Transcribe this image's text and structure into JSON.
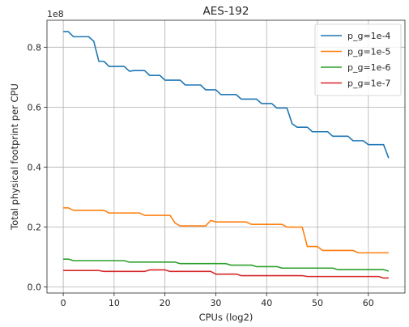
{
  "chart_data": {
    "type": "line",
    "title": "AES-192",
    "xlabel": "CPUs (log2)",
    "ylabel": "Total physical footprint per CPU",
    "y_offset_label": "1e8",
    "xlim": [
      -3.2,
      67.2
    ],
    "ylim": [
      -0.02,
      0.89
    ],
    "x_ticks": [
      0,
      10,
      20,
      30,
      40,
      50,
      60
    ],
    "y_ticks": [
      0.0,
      0.2,
      0.4,
      0.6,
      0.8
    ],
    "y_tick_labels": [
      "0.0",
      "0.2",
      "0.4",
      "0.6",
      "0.8"
    ],
    "grid": true,
    "legend": "top-right",
    "series": [
      {
        "name": "p_g=1e-4",
        "color": "#1f77b4",
        "x": [
          0,
          1,
          2,
          3,
          4,
          5,
          6,
          7,
          8,
          9,
          10,
          11,
          12,
          13,
          14,
          15,
          16,
          17,
          18,
          19,
          20,
          21,
          22,
          23,
          24,
          25,
          26,
          27,
          28,
          29,
          30,
          31,
          32,
          33,
          34,
          35,
          36,
          37,
          38,
          39,
          40,
          41,
          42,
          43,
          44,
          45,
          46,
          47,
          48,
          49,
          50,
          51,
          52,
          53,
          54,
          55,
          56,
          57,
          58,
          59,
          60,
          61,
          62,
          63,
          64
        ],
        "y": [
          0.852,
          0.852,
          0.835,
          0.835,
          0.835,
          0.835,
          0.82,
          0.753,
          0.753,
          0.736,
          0.736,
          0.736,
          0.736,
          0.72,
          0.722,
          0.722,
          0.722,
          0.706,
          0.706,
          0.706,
          0.69,
          0.69,
          0.69,
          0.69,
          0.674,
          0.674,
          0.674,
          0.674,
          0.658,
          0.658,
          0.658,
          0.642,
          0.642,
          0.642,
          0.642,
          0.627,
          0.627,
          0.627,
          0.627,
          0.612,
          0.612,
          0.612,
          0.597,
          0.597,
          0.597,
          0.545,
          0.533,
          0.533,
          0.533,
          0.518,
          0.518,
          0.518,
          0.518,
          0.503,
          0.503,
          0.503,
          0.503,
          0.488,
          0.488,
          0.488,
          0.475,
          0.475,
          0.475,
          0.475,
          0.43
        ]
      },
      {
        "name": "p_g=1e-5",
        "color": "#ff7f0e",
        "x": [
          0,
          1,
          2,
          3,
          4,
          5,
          6,
          7,
          8,
          9,
          10,
          11,
          12,
          13,
          14,
          15,
          16,
          17,
          18,
          19,
          20,
          21,
          22,
          23,
          24,
          25,
          26,
          27,
          28,
          29,
          30,
          31,
          32,
          33,
          34,
          35,
          36,
          37,
          38,
          39,
          40,
          41,
          42,
          43,
          44,
          45,
          46,
          47,
          48,
          49,
          50,
          51,
          52,
          53,
          54,
          55,
          56,
          57,
          58,
          59,
          60,
          61,
          62,
          63,
          64
        ],
        "y": [
          0.264,
          0.264,
          0.256,
          0.256,
          0.256,
          0.256,
          0.256,
          0.256,
          0.256,
          0.247,
          0.247,
          0.247,
          0.247,
          0.247,
          0.247,
          0.247,
          0.239,
          0.239,
          0.239,
          0.239,
          0.239,
          0.239,
          0.213,
          0.204,
          0.204,
          0.204,
          0.204,
          0.204,
          0.204,
          0.222,
          0.217,
          0.217,
          0.217,
          0.217,
          0.217,
          0.217,
          0.217,
          0.209,
          0.209,
          0.209,
          0.209,
          0.209,
          0.209,
          0.209,
          0.2,
          0.2,
          0.2,
          0.2,
          0.135,
          0.135,
          0.135,
          0.122,
          0.122,
          0.122,
          0.122,
          0.122,
          0.122,
          0.122,
          0.114,
          0.114,
          0.114,
          0.114,
          0.114,
          0.114,
          0.114
        ]
      },
      {
        "name": "p_g=1e-6",
        "color": "#2ca02c",
        "x": [
          0,
          1,
          2,
          3,
          4,
          5,
          6,
          7,
          8,
          9,
          10,
          11,
          12,
          13,
          14,
          15,
          16,
          17,
          18,
          19,
          20,
          21,
          22,
          23,
          24,
          25,
          26,
          27,
          28,
          29,
          30,
          31,
          32,
          33,
          34,
          35,
          36,
          37,
          38,
          39,
          40,
          41,
          42,
          43,
          44,
          45,
          46,
          47,
          48,
          49,
          50,
          51,
          52,
          53,
          54,
          55,
          56,
          57,
          58,
          59,
          60,
          61,
          62,
          63,
          64
        ],
        "y": [
          0.093,
          0.093,
          0.088,
          0.088,
          0.088,
          0.088,
          0.088,
          0.088,
          0.088,
          0.088,
          0.088,
          0.088,
          0.088,
          0.083,
          0.083,
          0.083,
          0.083,
          0.083,
          0.083,
          0.083,
          0.083,
          0.083,
          0.083,
          0.078,
          0.078,
          0.078,
          0.078,
          0.078,
          0.078,
          0.078,
          0.078,
          0.078,
          0.078,
          0.073,
          0.073,
          0.073,
          0.073,
          0.073,
          0.068,
          0.068,
          0.068,
          0.068,
          0.068,
          0.063,
          0.063,
          0.063,
          0.063,
          0.063,
          0.063,
          0.063,
          0.063,
          0.063,
          0.063,
          0.063,
          0.058,
          0.058,
          0.058,
          0.058,
          0.058,
          0.058,
          0.058,
          0.058,
          0.058,
          0.058,
          0.053
        ]
      },
      {
        "name": "p_g=1e-7",
        "color": "#d62728",
        "x": [
          0,
          1,
          2,
          3,
          4,
          5,
          6,
          7,
          8,
          9,
          10,
          11,
          12,
          13,
          14,
          15,
          16,
          17,
          18,
          19,
          20,
          21,
          22,
          23,
          24,
          25,
          26,
          27,
          28,
          29,
          30,
          31,
          32,
          33,
          34,
          35,
          36,
          37,
          38,
          39,
          40,
          41,
          42,
          43,
          44,
          45,
          46,
          47,
          48,
          49,
          50,
          51,
          52,
          53,
          54,
          55,
          56,
          57,
          58,
          59,
          60,
          61,
          62,
          63,
          64
        ],
        "y": [
          0.055,
          0.055,
          0.055,
          0.055,
          0.055,
          0.055,
          0.055,
          0.055,
          0.052,
          0.052,
          0.052,
          0.052,
          0.052,
          0.052,
          0.052,
          0.052,
          0.052,
          0.057,
          0.057,
          0.057,
          0.057,
          0.052,
          0.052,
          0.052,
          0.052,
          0.052,
          0.052,
          0.052,
          0.052,
          0.052,
          0.043,
          0.043,
          0.043,
          0.043,
          0.043,
          0.038,
          0.038,
          0.038,
          0.038,
          0.038,
          0.038,
          0.038,
          0.038,
          0.038,
          0.038,
          0.038,
          0.038,
          0.038,
          0.035,
          0.035,
          0.035,
          0.035,
          0.035,
          0.035,
          0.035,
          0.035,
          0.035,
          0.035,
          0.035,
          0.035,
          0.035,
          0.035,
          0.035,
          0.03,
          0.03
        ]
      }
    ]
  }
}
